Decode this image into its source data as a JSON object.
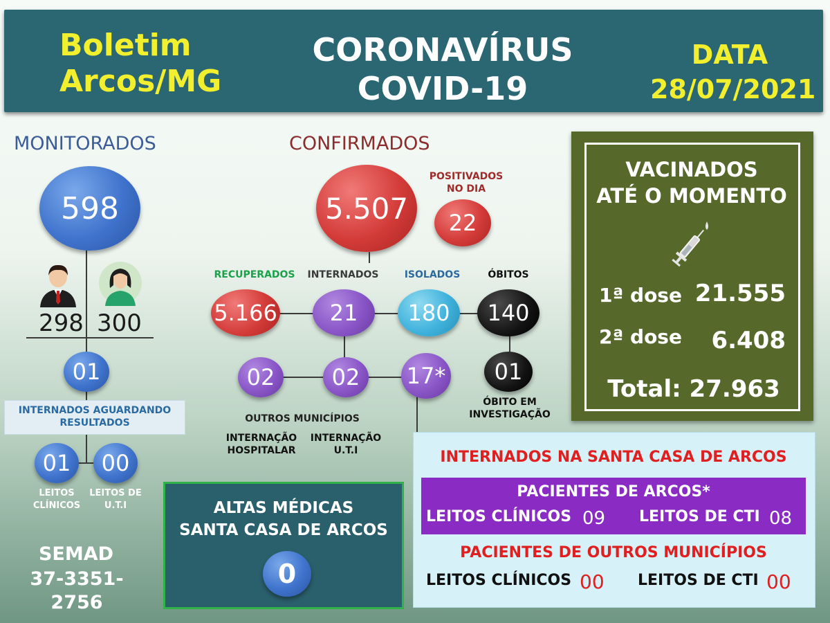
{
  "header": {
    "left_line1": "Boletim",
    "left_line2": "Arcos/MG",
    "center_line1": "CORONAVÍRUS",
    "center_line2": "COVID-19",
    "date_label": "DATA",
    "date_value": "28/07/2021"
  },
  "monitorados": {
    "title": "MONITORADOS",
    "total": "598",
    "men": "298",
    "women": "300",
    "aguardando_value": "01",
    "aguardando_label": "INTERNADOS AGUARDANDO RESULTADOS",
    "leitos_clinicos_value": "01",
    "leitos_clinicos_label": "LEITOS CLÍNICOS",
    "leitos_uti_value": "00",
    "leitos_uti_label": "LEITOS DE U.T.I"
  },
  "contact": {
    "org": "SEMAD",
    "phone": "37-3351-2756"
  },
  "confirmados": {
    "title": "CONFIRMADOS",
    "total": "5.507",
    "positivados_label": "POSITIVADOS NO DIA",
    "positivados_value": "22",
    "recuperados_label": "RECUPERADOS",
    "recuperados_value": "5.166",
    "internados_label": "INTERNADOS",
    "internados_value": "21",
    "isolados_label": "ISOLADOS",
    "isolados_value": "180",
    "obitos_label": "ÓBITOS",
    "obitos_value": "140",
    "investigacao_value": "01",
    "investigacao_label": "ÓBITO EM INVESTIGAÇÃO",
    "outros_value": "02",
    "outros_label": "OUTROS MUNICÍPIOS",
    "hospitalar_value": "02",
    "hospitalar_label": "INTERNAÇÃO HOSPITALAR",
    "uti_value": "17*",
    "uti_label": "INTERNAÇÃO U.T.I"
  },
  "vacinados": {
    "title_line1": "VACINADOS",
    "title_line2": "ATÉ O MOMENTO",
    "dose1_label": "1ª dose",
    "dose1_value": "21.555",
    "dose2_label": "2ª dose",
    "dose2_value": "6.408",
    "total": "Total: 27.963"
  },
  "altas": {
    "title_line1": "ALTAS MÉDICAS",
    "title_line2": "SANTA CASA DE ARCOS",
    "value": "0"
  },
  "santa_casa": {
    "title": "INTERNADOS NA SANTA CASA DE ARCOS",
    "arcos_title": "PACIENTES DE ARCOS*",
    "arcos_clinicos_label": "LEITOS CLÍNICOS",
    "arcos_clinicos_value": "09",
    "arcos_cti_label": "LEITOS DE CTI",
    "arcos_cti_value": "08",
    "outros_title": "PACIENTES DE OUTROS MUNICÍPIOS",
    "outros_clinicos_label": "LEITOS CLÍNICOS",
    "outros_clinicos_value": "00",
    "outros_cti_label": "LEITOS DE CTI",
    "outros_cti_value": "00"
  }
}
